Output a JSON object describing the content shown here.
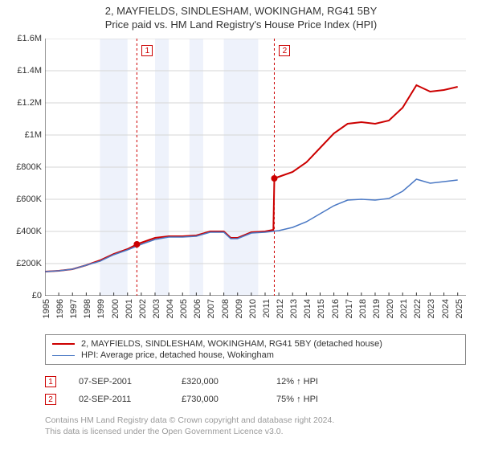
{
  "title_line1": "2, MAYFIELDS, SINDLESHAM, WOKINGHAM, RG41 5BY",
  "title_line2": "Price paid vs. HM Land Registry's House Price Index (HPI)",
  "chart": {
    "type": "line",
    "background_color": "#ffffff",
    "euro_band_color": "#eef2fb",
    "grid_color": "#d6d6d6",
    "axis_color": "#333333",
    "x_min": 1995,
    "x_max": 2025.6,
    "x_ticks": [
      1995,
      1996,
      1997,
      1998,
      1999,
      2000,
      2001,
      2002,
      2003,
      2004,
      2005,
      2006,
      2007,
      2008,
      2009,
      2010,
      2011,
      2012,
      2013,
      2014,
      2015,
      2016,
      2017,
      2018,
      2019,
      2020,
      2021,
      2022,
      2023,
      2024,
      2025
    ],
    "y_min": 0,
    "y_max": 1600000,
    "y_tick_step": 200000,
    "y_tick_labels": [
      "£0",
      "£200K",
      "£400K",
      "£600K",
      "£800K",
      "£1M",
      "£1.2M",
      "£1.4M",
      "£1.6M"
    ],
    "euro_bands": [
      [
        1999,
        2001
      ],
      [
        2003,
        2004
      ],
      [
        2005.5,
        2006.5
      ],
      [
        2008,
        2010.5
      ]
    ],
    "series": [
      {
        "name": "2, MAYFIELDS, SINDLESHAM, WOKINGHAM, RG41 5BY (detached house)",
        "color": "#cc0000",
        "line_width": 2,
        "data": [
          [
            1995,
            150000
          ],
          [
            1996,
            155000
          ],
          [
            1997,
            165000
          ],
          [
            1998,
            190000
          ],
          [
            1999,
            220000
          ],
          [
            2000,
            260000
          ],
          [
            2001,
            290000
          ],
          [
            2001.68,
            320000
          ],
          [
            2002,
            330000
          ],
          [
            2003,
            360000
          ],
          [
            2004,
            370000
          ],
          [
            2005,
            370000
          ],
          [
            2006,
            375000
          ],
          [
            2007,
            400000
          ],
          [
            2008,
            400000
          ],
          [
            2008.5,
            360000
          ],
          [
            2009,
            360000
          ],
          [
            2010,
            395000
          ],
          [
            2011,
            400000
          ],
          [
            2011.6,
            410000
          ],
          [
            2011.67,
            730000
          ],
          [
            2012,
            740000
          ],
          [
            2013,
            770000
          ],
          [
            2014,
            830000
          ],
          [
            2015,
            920000
          ],
          [
            2016,
            1010000
          ],
          [
            2017,
            1070000
          ],
          [
            2018,
            1080000
          ],
          [
            2019,
            1070000
          ],
          [
            2020,
            1090000
          ],
          [
            2021,
            1170000
          ],
          [
            2022,
            1310000
          ],
          [
            2023,
            1270000
          ],
          [
            2024,
            1280000
          ],
          [
            2025,
            1300000
          ]
        ]
      },
      {
        "name": "HPI: Average price, detached house, Wokingham",
        "color": "#4a78c4",
        "line_width": 1.5,
        "data": [
          [
            1995,
            150000
          ],
          [
            1996,
            155000
          ],
          [
            1997,
            165000
          ],
          [
            1998,
            190000
          ],
          [
            1999,
            215000
          ],
          [
            2000,
            255000
          ],
          [
            2001,
            285000
          ],
          [
            2002,
            320000
          ],
          [
            2003,
            350000
          ],
          [
            2004,
            365000
          ],
          [
            2005,
            365000
          ],
          [
            2006,
            370000
          ],
          [
            2007,
            395000
          ],
          [
            2008,
            395000
          ],
          [
            2008.5,
            355000
          ],
          [
            2009,
            355000
          ],
          [
            2010,
            390000
          ],
          [
            2011,
            395000
          ],
          [
            2012,
            405000
          ],
          [
            2013,
            425000
          ],
          [
            2014,
            460000
          ],
          [
            2015,
            510000
          ],
          [
            2016,
            560000
          ],
          [
            2017,
            595000
          ],
          [
            2018,
            600000
          ],
          [
            2019,
            595000
          ],
          [
            2020,
            605000
          ],
          [
            2021,
            650000
          ],
          [
            2022,
            725000
          ],
          [
            2023,
            700000
          ],
          [
            2024,
            710000
          ],
          [
            2025,
            720000
          ]
        ]
      }
    ],
    "sale_markers": [
      {
        "num": "1",
        "x": 2001.68,
        "y": 320000,
        "dot_color": "#cc0000",
        "line_color": "#cc0000"
      },
      {
        "num": "2",
        "x": 2011.67,
        "y": 730000,
        "dot_color": "#cc0000",
        "line_color": "#cc0000"
      }
    ]
  },
  "legend": {
    "rows": [
      {
        "color": "#cc0000",
        "width": 2,
        "label": "2, MAYFIELDS, SINDLESHAM, WOKINGHAM, RG41 5BY (detached house)"
      },
      {
        "color": "#4a78c4",
        "width": 1.5,
        "label": "HPI: Average price, detached house, Wokingham"
      }
    ]
  },
  "sales": [
    {
      "num": "1",
      "date": "07-SEP-2001",
      "price": "£320,000",
      "pct": "12% ↑ HPI"
    },
    {
      "num": "2",
      "date": "02-SEP-2011",
      "price": "£730,000",
      "pct": "75% ↑ HPI"
    }
  ],
  "footer_line1": "Contains HM Land Registry data © Crown copyright and database right 2024.",
  "footer_line2": "This data is licensed under the Open Government Licence v3.0."
}
